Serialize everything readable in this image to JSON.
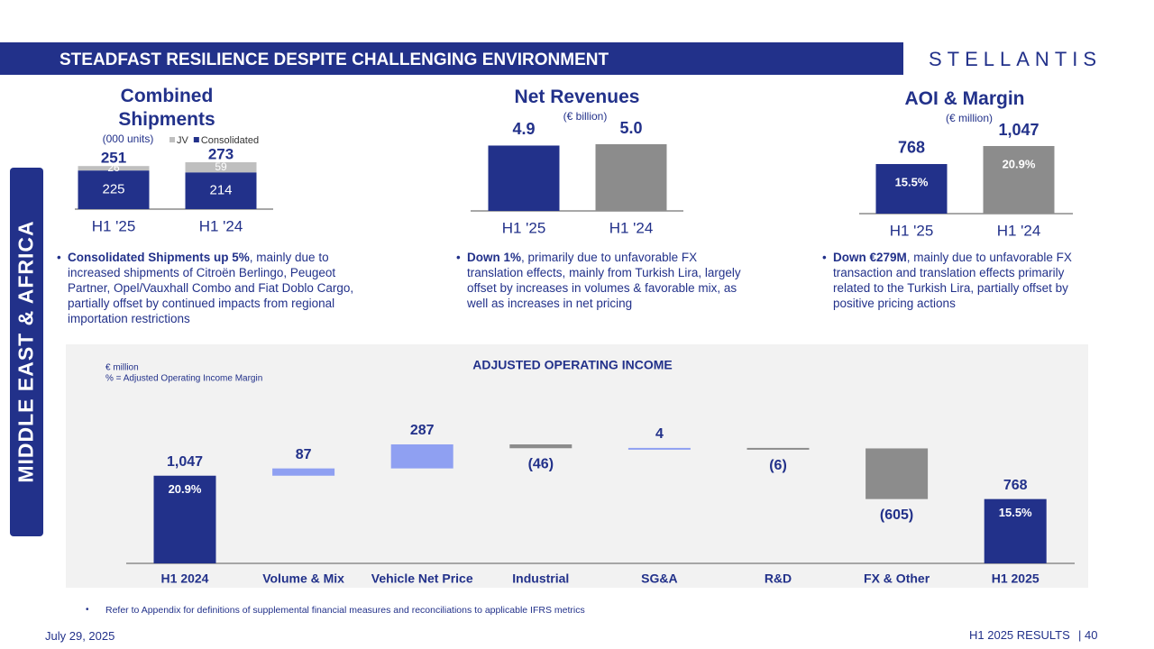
{
  "header": {
    "title": "STEADFAST RESILIENCE DESPITE CHALLENGING ENVIRONMENT",
    "logo": "STELLANTIS"
  },
  "side_label": "MIDDLE EAST & AFRICA",
  "chart_data": [
    {
      "type": "stacked_bar",
      "title": "Combined Shipments",
      "subtitle": "(000 units)",
      "categories": [
        "H1 '25",
        "H1 '24"
      ],
      "series": [
        {
          "name": "JV",
          "color": "#bfbfbf",
          "values": [
            26,
            59
          ]
        },
        {
          "name": "Consolidated",
          "color": "#22318a",
          "values": [
            225,
            214
          ]
        }
      ],
      "totals": [
        251,
        273
      ]
    },
    {
      "type": "bar",
      "title": "Net Revenues",
      "subtitle": "(€ billion)",
      "categories": [
        "H1 '25",
        "H1 '24"
      ],
      "values": [
        4.9,
        5.0
      ],
      "value_labels": [
        "4.9",
        "5.0"
      ],
      "colors": [
        "#22318a",
        "#8c8c8c"
      ]
    },
    {
      "type": "bar",
      "title": "AOI & Margin",
      "subtitle": "(€ million)",
      "categories": [
        "H1 '25",
        "H1 '24"
      ],
      "values": [
        768,
        1047
      ],
      "value_labels": [
        "768",
        "1,047"
      ],
      "margins": [
        15.5,
        20.9
      ],
      "margin_labels": [
        "15.5%",
        "20.9%"
      ],
      "colors": [
        "#22318a",
        "#8c8c8c"
      ]
    },
    {
      "type": "waterfall",
      "title": "ADJUSTED OPERATING INCOME",
      "notes": [
        "€ million",
        "% = Adjusted Operating Income Margin"
      ],
      "categories": [
        "H1 2024",
        "Volume & Mix",
        "Vehicle Net Price",
        "Industrial",
        "SG&A",
        "R&D",
        "FX & Other",
        "H1 2025"
      ],
      "measure": [
        "total",
        "relative",
        "relative",
        "relative",
        "relative",
        "relative",
        "relative",
        "total"
      ],
      "values": [
        1047,
        87,
        287,
        -46,
        4,
        -6,
        -605,
        768
      ],
      "value_labels": [
        "1,047",
        "87",
        "287",
        "(46)",
        "4",
        "(6)",
        "(605)",
        "768"
      ],
      "margins": [
        20.9,
        null,
        null,
        null,
        null,
        null,
        null,
        15.5
      ],
      "margin_labels": [
        "20.9%",
        null,
        null,
        null,
        null,
        null,
        null,
        "15.5%"
      ],
      "colors": {
        "total": "#22318a",
        "increase": "#8fa0f2",
        "decrease": "#8c8c8c"
      }
    }
  ],
  "bullets": [
    {
      "bold": "Consolidated Shipments up 5%",
      "text": ", mainly due to increased shipments of Citroën Berlingo, Peugeot Partner, Opel/Vauxhall Combo and Fiat Doblo Cargo, partially offset by continued impacts from regional importation restrictions"
    },
    {
      "bold": "Down 1%",
      "text": ", primarily due to unfavorable FX translation effects, mainly from Turkish Lira, largely offset by increases in volumes & favorable mix, as well as increases in net pricing"
    },
    {
      "bold": "Down €279M",
      "text": ", mainly due to unfavorable FX transaction and translation effects primarily related to the Turkish Lira, partially offset by positive pricing actions"
    }
  ],
  "footnote": "Refer to Appendix for definitions of supplemental financial measures and reconciliations to applicable IFRS metrics",
  "footer": {
    "date": "July 29, 2025",
    "report": "H1 2025 RESULTS",
    "page": "| 40"
  }
}
